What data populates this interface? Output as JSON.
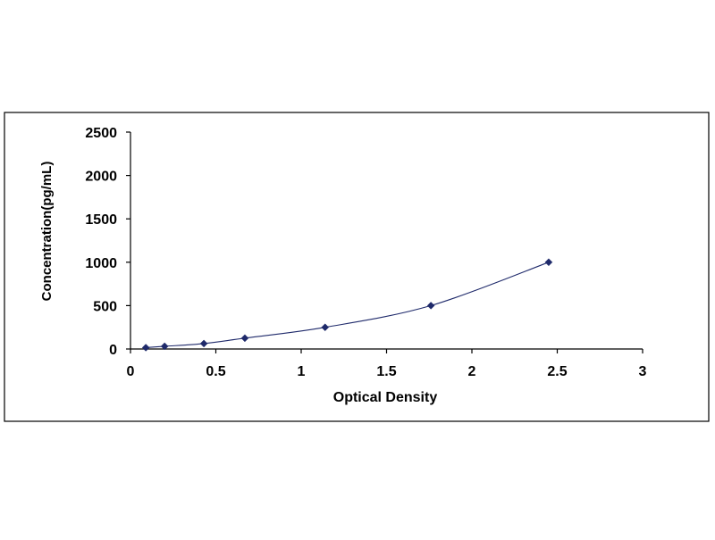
{
  "chart_data": {
    "type": "scatter",
    "xlabel": "Optical Density",
    "ylabel": "Concentration(pg/mL)",
    "xlim": [
      0,
      3
    ],
    "ylim": [
      0,
      2500
    ],
    "x_ticks": [
      0,
      0.5,
      1,
      1.5,
      2,
      2.5,
      3
    ],
    "x_tick_labels": [
      "0",
      "0.5",
      "1",
      "1.5",
      "2",
      "2.5",
      "3"
    ],
    "y_ticks": [
      0,
      500,
      1000,
      1500,
      2000,
      2500
    ],
    "y_tick_labels": [
      "0",
      "500",
      "1000",
      "1500",
      "2000",
      "2500"
    ],
    "grid": false,
    "legend": "none",
    "trendline": "smooth curve through points",
    "series": [
      {
        "marker": "diamond",
        "color": "#1f2a6b",
        "x": [
          0.09,
          0.2,
          0.43,
          0.67,
          1.14,
          1.76,
          2.45
        ],
        "y": [
          15.6,
          31.2,
          62.5,
          125,
          250,
          500,
          1000
        ]
      }
    ]
  }
}
